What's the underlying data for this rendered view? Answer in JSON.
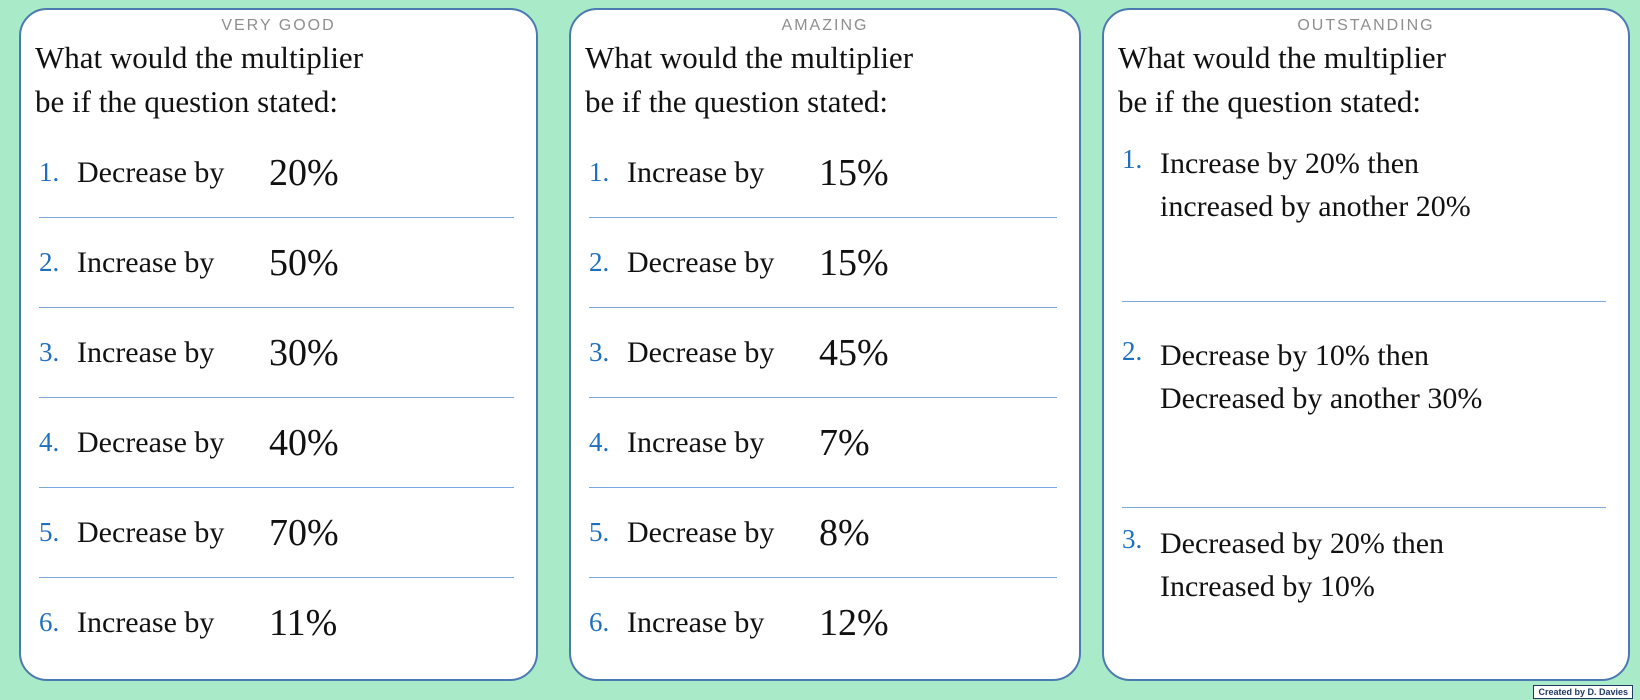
{
  "page": {
    "credit": "Created by D. Davies"
  },
  "colors": {
    "background": "#a9eac8",
    "card_background": "#ffffff",
    "card_border": "#4a7ab0",
    "separator": "#7da7dc",
    "number_blue": "#1f6fc0",
    "title_gray": "#8e8e8e",
    "body_text": "#111111"
  },
  "cards": [
    {
      "title": "VERY GOOD",
      "heading_line1": "What would the multiplier",
      "heading_line2": "be if the question stated:",
      "items": [
        {
          "num": "1.",
          "action": "Decrease by",
          "value": "20%"
        },
        {
          "num": "2.",
          "action": "Increase by",
          "value": "50%"
        },
        {
          "num": "3.",
          "action": "Increase by",
          "value": "30%"
        },
        {
          "num": "4.",
          "action": "Decrease by",
          "value": "40%"
        },
        {
          "num": "5.",
          "action": "Decrease by",
          "value": "70%"
        },
        {
          "num": "6.",
          "action": "Increase by",
          "value": "11%"
        }
      ]
    },
    {
      "title": "AMAZING",
      "heading_line1": "What would the multiplier",
      "heading_line2": "be if the question stated:",
      "items": [
        {
          "num": "1.",
          "action": "Increase by",
          "value": "15%"
        },
        {
          "num": "2.",
          "action": "Decrease by",
          "value": "15%"
        },
        {
          "num": "3.",
          "action": "Decrease by",
          "value": "45%"
        },
        {
          "num": "4.",
          "action": "Increase by",
          "value": "7%"
        },
        {
          "num": "5.",
          "action": "Decrease by",
          "value": "8%"
        },
        {
          "num": "6.",
          "action": "Increase by",
          "value": "12%"
        }
      ]
    },
    {
      "title": "OUTSTANDING",
      "heading_line1": "What would the multiplier",
      "heading_line2": "be if the question stated:",
      "items": [
        {
          "num": "1.",
          "line1": "Increase by 20% then",
          "line2": "increased by another 20%"
        },
        {
          "num": "2.",
          "line1": "Decrease by 10% then",
          "line2": "Decreased by another 30%"
        },
        {
          "num": "3.",
          "line1": "Decreased by 20% then",
          "line2": "Increased by 10%"
        }
      ]
    }
  ]
}
